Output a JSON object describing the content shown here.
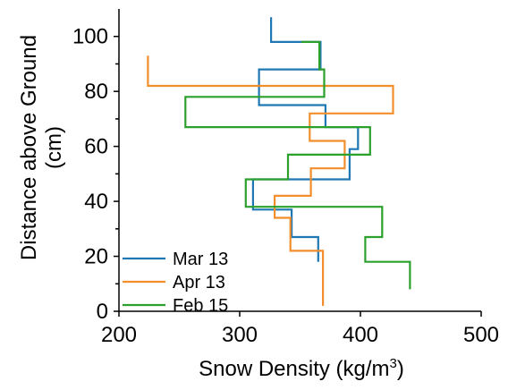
{
  "chart_data": {
    "type": "line",
    "title": "",
    "xlabel": "Snow Density (kg/m",
    "xlabel_sup": "3",
    "xlabel_tail": ")",
    "ylabel_line1": "Distance above Ground",
    "ylabel_line2": "(cm)",
    "xlim": [
      200,
      500
    ],
    "ylim": [
      0,
      110
    ],
    "x_ticks": [
      200,
      300,
      400,
      500
    ],
    "y_ticks": [
      0,
      20,
      40,
      60,
      80,
      100
    ],
    "y_minor_ticks": [
      10,
      30,
      50,
      70,
      90
    ],
    "grid": false,
    "legend_position": "bottom-left",
    "series": [
      {
        "name": "Mar 13",
        "color": "#1f77b4",
        "points": [
          [
            365,
            18
          ],
          [
            365,
            27
          ],
          [
            343,
            27
          ],
          [
            343,
            37
          ],
          [
            311,
            37
          ],
          [
            311,
            48
          ],
          [
            391,
            48
          ],
          [
            391,
            59
          ],
          [
            398,
            59
          ],
          [
            398,
            67
          ],
          [
            371,
            67
          ],
          [
            371,
            75
          ],
          [
            316,
            75
          ],
          [
            316,
            88
          ],
          [
            367,
            88
          ],
          [
            367,
            98
          ],
          [
            326,
            98
          ],
          [
            326,
            107
          ]
        ]
      },
      {
        "name": "Apr 13",
        "color": "#f28e2b",
        "points": [
          [
            369,
            2
          ],
          [
            369,
            22
          ],
          [
            342,
            22
          ],
          [
            342,
            34
          ],
          [
            329,
            34
          ],
          [
            329,
            42
          ],
          [
            359,
            42
          ],
          [
            359,
            52
          ],
          [
            387,
            52
          ],
          [
            387,
            62
          ],
          [
            358,
            62
          ],
          [
            358,
            72
          ],
          [
            427,
            72
          ],
          [
            427,
            82
          ],
          [
            224,
            82
          ],
          [
            224,
            93
          ]
        ]
      },
      {
        "name": "Feb 15",
        "color": "#2ca02c",
        "points": [
          [
            441,
            8
          ],
          [
            441,
            18
          ],
          [
            404,
            18
          ],
          [
            404,
            27
          ],
          [
            418,
            27
          ],
          [
            418,
            38
          ],
          [
            305,
            38
          ],
          [
            305,
            48
          ],
          [
            340,
            48
          ],
          [
            340,
            57
          ],
          [
            408,
            57
          ],
          [
            408,
            67
          ],
          [
            255,
            67
          ],
          [
            255,
            78
          ],
          [
            370,
            78
          ],
          [
            370,
            88
          ],
          [
            366,
            88
          ],
          [
            366,
            98
          ],
          [
            351,
            98
          ]
        ]
      }
    ]
  }
}
